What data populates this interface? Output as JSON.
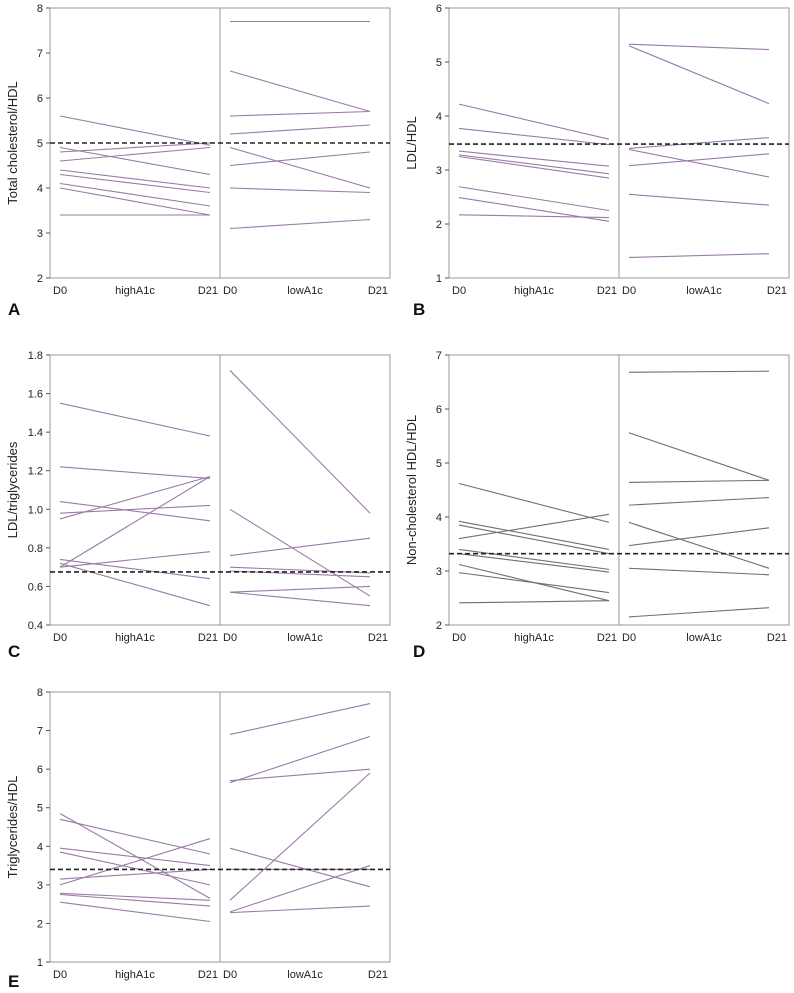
{
  "chart_data": [
    {
      "panel_letter": "A",
      "type": "line",
      "ylabel": "Total cholesterol/HDL",
      "ylim": [
        2,
        8
      ],
      "yticks": [
        2,
        3,
        4,
        5,
        6,
        7,
        8
      ],
      "ref_line": 5,
      "line_color": "#9a7aa6",
      "groups": [
        {
          "name": "highA1c",
          "start_label": "D0",
          "end_label": "D21",
          "pairs": [
            [
              5.6,
              4.95
            ],
            [
              4.9,
              4.3
            ],
            [
              4.8,
              5.0
            ],
            [
              4.6,
              4.9
            ],
            [
              4.4,
              4.0
            ],
            [
              4.3,
              3.9
            ],
            [
              4.1,
              3.6
            ],
            [
              4.0,
              3.4
            ],
            [
              3.4,
              3.4
            ]
          ]
        },
        {
          "name": "lowA1c",
          "start_label": "D0",
          "end_label": "D21",
          "pairs": [
            [
              7.7,
              7.7
            ],
            [
              6.6,
              5.7
            ],
            [
              5.6,
              5.7
            ],
            [
              5.2,
              5.4
            ],
            [
              4.9,
              4.0
            ],
            [
              4.5,
              4.8
            ],
            [
              4.0,
              3.9
            ],
            [
              3.1,
              3.3
            ]
          ]
        }
      ]
    },
    {
      "panel_letter": "B",
      "type": "line",
      "ylabel": "LDL/HDL",
      "ylim": [
        1,
        6
      ],
      "yticks": [
        1,
        2,
        3,
        4,
        5,
        6
      ],
      "ref_line": 3.48,
      "line_color": "#9a7aa6",
      "groups": [
        {
          "name": "highA1c",
          "start_label": "D0",
          "end_label": "D21",
          "pairs": [
            [
              4.22,
              3.57
            ],
            [
              3.77,
              3.47
            ],
            [
              3.35,
              3.07
            ],
            [
              3.28,
              2.93
            ],
            [
              3.25,
              2.85
            ],
            [
              2.69,
              2.25
            ],
            [
              2.49,
              2.05
            ],
            [
              2.17,
              2.12
            ]
          ]
        },
        {
          "name": "lowA1c",
          "start_label": "D0",
          "end_label": "D21",
          "pairs": [
            [
              5.33,
              5.23
            ],
            [
              5.3,
              4.23
            ],
            [
              3.4,
              3.6
            ],
            [
              3.38,
              2.87
            ],
            [
              3.08,
              3.3
            ],
            [
              2.55,
              2.35
            ],
            [
              1.38,
              1.45
            ]
          ]
        }
      ]
    },
    {
      "panel_letter": "C",
      "type": "line",
      "ylabel": "LDL/triglycerides",
      "ylim": [
        0.4,
        1.8
      ],
      "yticks": [
        0.4,
        0.6,
        0.8,
        1.0,
        1.2,
        1.4,
        1.6,
        1.8
      ],
      "ytick_labels": [
        "0.4",
        "0.6",
        "0.8",
        "1.0",
        "1.2",
        "1.4",
        "1.6",
        "1.8"
      ],
      "ref_line": 0.675,
      "line_color": "#9a7aa6",
      "groups": [
        {
          "name": "highA1c",
          "start_label": "D0",
          "end_label": "D21",
          "pairs": [
            [
              1.55,
              1.38
            ],
            [
              1.22,
              1.16
            ],
            [
              1.04,
              0.94
            ],
            [
              0.98,
              1.02
            ],
            [
              0.95,
              1.17
            ],
            [
              0.74,
              0.64
            ],
            [
              0.72,
              0.5
            ],
            [
              0.7,
              1.17
            ],
            [
              0.7,
              0.78
            ]
          ]
        },
        {
          "name": "lowA1c",
          "start_label": "D0",
          "end_label": "D21",
          "pairs": [
            [
              1.72,
              0.98
            ],
            [
              1.0,
              0.55
            ],
            [
              0.76,
              0.85
            ],
            [
              0.7,
              0.67
            ],
            [
              0.68,
              0.65
            ],
            [
              0.57,
              0.6
            ],
            [
              0.57,
              0.5
            ]
          ]
        }
      ]
    },
    {
      "panel_letter": "D",
      "type": "line",
      "ylabel": "Non-cholesterol HDL/HDL",
      "ylim": [
        2,
        7
      ],
      "yticks": [
        2,
        3,
        4,
        5,
        6,
        7
      ],
      "ref_line": 3.32,
      "line_color": "#6f6f6f",
      "groups": [
        {
          "name": "highA1c",
          "start_label": "D0",
          "end_label": "D21",
          "pairs": [
            [
              4.62,
              3.9
            ],
            [
              3.92,
              3.4
            ],
            [
              3.85,
              3.32
            ],
            [
              3.6,
              4.05
            ],
            [
              3.4,
              3.03
            ],
            [
              3.32,
              2.98
            ],
            [
              3.12,
              2.45
            ],
            [
              2.97,
              2.6
            ],
            [
              2.41,
              2.45
            ]
          ]
        },
        {
          "name": "lowA1c",
          "start_label": "D0",
          "end_label": "D21",
          "pairs": [
            [
              6.68,
              6.7
            ],
            [
              5.56,
              4.68
            ],
            [
              4.64,
              4.68
            ],
            [
              4.22,
              4.36
            ],
            [
              3.9,
              3.05
            ],
            [
              3.47,
              3.8
            ],
            [
              3.05,
              2.93
            ],
            [
              2.15,
              2.32
            ]
          ]
        }
      ]
    },
    {
      "panel_letter": "E",
      "type": "line",
      "ylabel": "Triglycerides/HDL",
      "ylim": [
        1,
        8
      ],
      "yticks": [
        1,
        2,
        3,
        4,
        5,
        6,
        7,
        8
      ],
      "ref_line": 3.4,
      "line_color": "#9a7aa6",
      "groups": [
        {
          "name": "highA1c",
          "start_label": "D0",
          "end_label": "D21",
          "pairs": [
            [
              4.85,
              2.65
            ],
            [
              4.7,
              3.8
            ],
            [
              3.95,
              3.5
            ],
            [
              3.85,
              3.0
            ],
            [
              3.15,
              3.4
            ],
            [
              3.0,
              4.2
            ],
            [
              2.78,
              2.6
            ],
            [
              2.75,
              2.45
            ],
            [
              2.55,
              2.05
            ]
          ]
        },
        {
          "name": "lowA1c",
          "start_label": "D0",
          "end_label": "D21",
          "pairs": [
            [
              6.9,
              7.7
            ],
            [
              5.7,
              6.0
            ],
            [
              5.65,
              6.85
            ],
            [
              3.95,
              2.95
            ],
            [
              3.4,
              3.4
            ],
            [
              2.6,
              5.9
            ],
            [
              2.3,
              3.5
            ],
            [
              2.28,
              2.45
            ]
          ]
        }
      ]
    }
  ]
}
